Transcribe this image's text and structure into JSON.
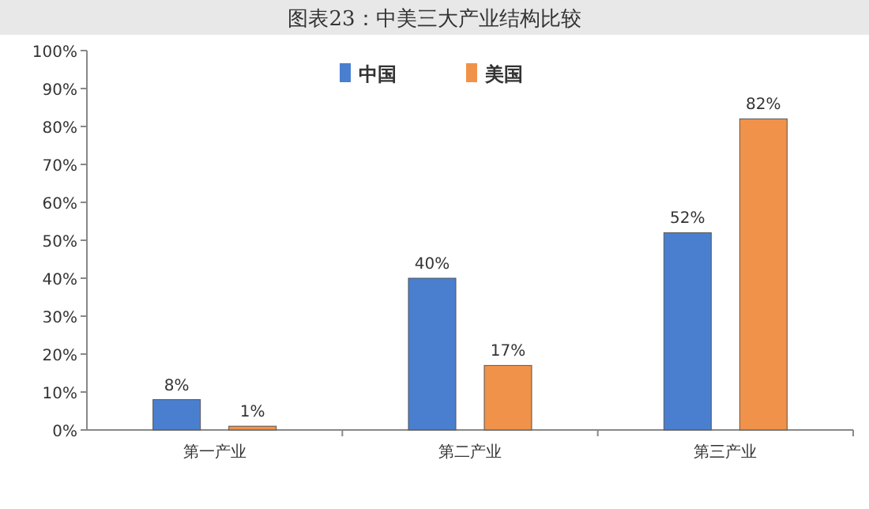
{
  "chart_data": {
    "type": "bar",
    "title": "图表23：中美三大产业结构比较",
    "categories": [
      "第一产业",
      "第二产业",
      "第三产业"
    ],
    "series": [
      {
        "name": "中国",
        "color": "#4a7fd0",
        "values": [
          8,
          40,
          52
        ],
        "value_labels": [
          "8%",
          "40%",
          "52%"
        ]
      },
      {
        "name": "美国",
        "color": "#f0924a",
        "values": [
          1,
          17,
          82
        ],
        "value_labels": [
          "1%",
          "17%",
          "82%"
        ]
      }
    ],
    "ylim": [
      0,
      100
    ],
    "yticks": [
      {
        "value": 0,
        "label": "0%"
      },
      {
        "value": 10,
        "label": "10%"
      },
      {
        "value": 20,
        "label": "20%"
      },
      {
        "value": 30,
        "label": "30%"
      },
      {
        "value": 40,
        "label": "40%"
      },
      {
        "value": 50,
        "label": "50%"
      },
      {
        "value": 60,
        "label": "60%"
      },
      {
        "value": 70,
        "label": "70%"
      },
      {
        "value": 80,
        "label": "80%"
      },
      {
        "value": 90,
        "label": "90%"
      },
      {
        "value": 100,
        "label": "100%"
      }
    ],
    "legend": "top"
  }
}
